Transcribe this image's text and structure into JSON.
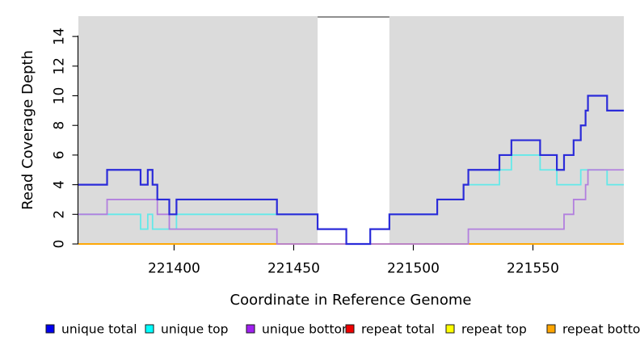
{
  "figure": {
    "background": "#FFFFFF",
    "panel_background": "#DBDBDB",
    "highlight_band": {
      "x_start": 221460,
      "x_end": 221490,
      "fill": "#FFFFFF",
      "top_edge_color": "#8F8F8F"
    }
  },
  "chart_data": {
    "type": "line",
    "style": "step",
    "title": "",
    "xlabel": "Coordinate in Reference Genome",
    "ylabel": "Read Coverage Depth",
    "x_ticks": [
      221400,
      221450,
      221500,
      221550
    ],
    "y_ticks": [
      0,
      2,
      4,
      6,
      8,
      10,
      12,
      14
    ],
    "xlim": [
      221360,
      221588
    ],
    "ylim": [
      0,
      15.37
    ],
    "grid": false,
    "legend_position": "bottom",
    "series": [
      {
        "name": "repeat total",
        "color": "#DD0000",
        "line_width": 1.5,
        "steps": [
          [
            221360,
            0
          ]
        ]
      },
      {
        "name": "repeat top",
        "color": "#FFFF00",
        "line_width": 1.5,
        "steps": [
          [
            221360,
            0
          ]
        ]
      },
      {
        "name": "repeat bottom",
        "color": "#FFA500",
        "line_width": 1.8,
        "steps": [
          [
            221360,
            0
          ]
        ]
      },
      {
        "name": "unique top",
        "color": "#63E9E9",
        "line_width": 1.8,
        "steps": [
          [
            221360,
            2
          ],
          [
            221386,
            1
          ],
          [
            221389,
            2
          ],
          [
            221391,
            1
          ],
          [
            221401,
            2
          ],
          [
            221460,
            1
          ],
          [
            221472,
            0
          ],
          [
            221482,
            1
          ],
          [
            221490,
            2
          ],
          [
            221510,
            3
          ],
          [
            221521,
            4
          ],
          [
            221536,
            5
          ],
          [
            221541,
            6
          ],
          [
            221553,
            5
          ],
          [
            221560,
            4
          ],
          [
            221570,
            5
          ],
          [
            221581,
            4
          ]
        ]
      },
      {
        "name": "unique bottom",
        "color": "#B27FDE",
        "line_width": 1.8,
        "steps": [
          [
            221360,
            2
          ],
          [
            221372,
            3
          ],
          [
            221393,
            2
          ],
          [
            221398,
            1
          ],
          [
            221443,
            0
          ],
          [
            221523,
            1
          ],
          [
            221563,
            2
          ],
          [
            221567,
            3
          ],
          [
            221572,
            4
          ],
          [
            221573,
            5
          ]
        ]
      },
      {
        "name": "unique total",
        "color": "#2B2BD9",
        "line_width": 2.2,
        "steps": [
          [
            221360,
            4
          ],
          [
            221372,
            5
          ],
          [
            221386,
            4
          ],
          [
            221389,
            5
          ],
          [
            221391,
            4
          ],
          [
            221393,
            3
          ],
          [
            221398,
            2
          ],
          [
            221401,
            3
          ],
          [
            221443,
            2
          ],
          [
            221460,
            1
          ],
          [
            221472,
            0
          ],
          [
            221482,
            1
          ],
          [
            221490,
            2
          ],
          [
            221510,
            3
          ],
          [
            221521,
            4
          ],
          [
            221523,
            5
          ],
          [
            221536,
            6
          ],
          [
            221541,
            7
          ],
          [
            221553,
            6
          ],
          [
            221560,
            5
          ],
          [
            221563,
            6
          ],
          [
            221567,
            7
          ],
          [
            221570,
            8
          ],
          [
            221572,
            9
          ],
          [
            221573,
            10
          ],
          [
            221581,
            9
          ]
        ]
      }
    ],
    "legend": [
      {
        "label": "unique total",
        "fill": "#0000EE",
        "border": "#1A1A1A"
      },
      {
        "label": "unique top",
        "fill": "#00FFFF",
        "border": "#1A1A1A"
      },
      {
        "label": "unique bottom",
        "fill": "#A020F0",
        "border": "#1A1A1A"
      },
      {
        "label": "repeat total",
        "fill": "#EE0000",
        "border": "#1A1A1A"
      },
      {
        "label": "repeat top",
        "fill": "#FFFF00",
        "border": "#1A1A1A"
      },
      {
        "label": "repeat bottom",
        "fill": "#FFA500",
        "border": "#1A1A1A"
      }
    ]
  }
}
